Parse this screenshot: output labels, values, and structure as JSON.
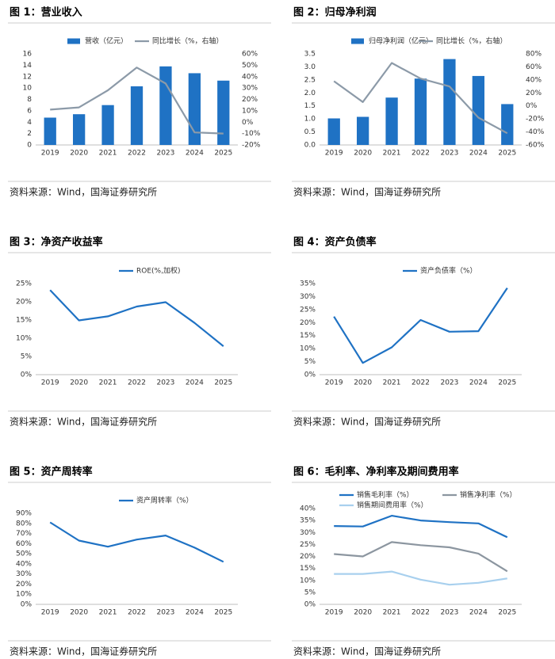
{
  "chart_data": [
    {
      "type": "combo",
      "title": "图 1：营业收入",
      "source": "资料来源：Wind，国海证券研究所",
      "categories": [
        "2019",
        "2020",
        "2021",
        "2022",
        "2023",
        "2024",
        "2025"
      ],
      "series": [
        {
          "name": "营收（亿元）",
          "type": "bar",
          "color": "#1f72c4",
          "values": [
            4.8,
            5.4,
            7.0,
            10.3,
            13.8,
            12.6,
            11.3
          ]
        },
        {
          "name": "同比增长（%，右轴）",
          "type": "line",
          "axis": "y2",
          "color": "#8c9aa8",
          "values": [
            11,
            13,
            28,
            48,
            34,
            -9,
            -10
          ]
        }
      ],
      "ylim": [
        0,
        16
      ],
      "yticks": [
        0,
        2,
        4,
        6,
        8,
        10,
        12,
        14,
        16
      ],
      "y2lim": [
        -20,
        60
      ],
      "y2ticks": [
        {
          "value": -20,
          "label": "-20%"
        },
        {
          "value": -10,
          "label": "-10%"
        },
        {
          "value": 0,
          "label": "0%"
        },
        {
          "value": 10,
          "label": "10%"
        },
        {
          "value": 20,
          "label": "20%"
        },
        {
          "value": 30,
          "label": "30%"
        },
        {
          "value": 40,
          "label": "40%"
        },
        {
          "value": 50,
          "label": "50%"
        },
        {
          "value": 60,
          "label": "60%"
        }
      ]
    },
    {
      "type": "combo",
      "title": "图 2：归母净利润",
      "source": "资料来源：Wind，国海证券研究所",
      "categories": [
        "2019",
        "2020",
        "2021",
        "2022",
        "2023",
        "2024",
        "2025"
      ],
      "series": [
        {
          "name": "归母净利润（亿元）",
          "type": "bar",
          "color": "#1f72c4",
          "values": [
            1.02,
            1.08,
            1.82,
            2.55,
            3.3,
            2.65,
            1.57
          ]
        },
        {
          "name": "同比增长（%，右轴）",
          "type": "line",
          "axis": "y2",
          "color": "#8c9aa8",
          "values": [
            38,
            6,
            66,
            42,
            30,
            -18,
            -42
          ]
        }
      ],
      "ylim": [
        0,
        3.5
      ],
      "yticks": [
        {
          "value": 0,
          "label": "0.0"
        },
        0.5,
        {
          "value": 1,
          "label": "1.0"
        },
        1.5,
        {
          "value": 2,
          "label": "2.0"
        },
        2.5,
        {
          "value": 3,
          "label": "3.0"
        },
        3.5
      ],
      "y2lim": [
        -60,
        80
      ],
      "y2ticks": [
        {
          "value": -60,
          "label": "-60%"
        },
        {
          "value": -40,
          "label": "-40%"
        },
        {
          "value": -20,
          "label": "-20%"
        },
        {
          "value": 0,
          "label": "0%"
        },
        {
          "value": 20,
          "label": "20%"
        },
        {
          "value": 40,
          "label": "40%"
        },
        {
          "value": 60,
          "label": "60%"
        },
        {
          "value": 80,
          "label": "80%"
        }
      ]
    },
    {
      "type": "line",
      "title": "图 3：净资产收益率",
      "source": "资料来源：Wind，国海证券研究所",
      "categories": [
        "2019",
        "2020",
        "2021",
        "2022",
        "2023",
        "2024",
        "2025"
      ],
      "series": [
        {
          "name": "ROE(%,加权)",
          "type": "line",
          "color": "#1f72c4",
          "values": [
            23.2,
            14.9,
            16.0,
            18.7,
            19.9,
            14.2,
            7.8
          ]
        }
      ],
      "ylim": [
        0,
        25
      ],
      "yticks": [
        {
          "value": 0,
          "label": "0%"
        },
        {
          "value": 5,
          "label": "5%"
        },
        {
          "value": 10,
          "label": "10%"
        },
        {
          "value": 15,
          "label": "15%"
        },
        {
          "value": 20,
          "label": "20%"
        },
        {
          "value": 25,
          "label": "25%"
        }
      ]
    },
    {
      "type": "line",
      "title": "图 4：资产负债率",
      "source": "资料来源：Wind，国海证券研究所",
      "categories": [
        "2019",
        "2020",
        "2021",
        "2022",
        "2023",
        "2024",
        "2025"
      ],
      "series": [
        {
          "name": "资产负债率（%）",
          "type": "line",
          "color": "#1f72c4",
          "values": [
            22.3,
            4.5,
            10.5,
            21.0,
            16.5,
            16.7,
            33.3
          ]
        }
      ],
      "ylim": [
        0,
        35
      ],
      "yticks": [
        {
          "value": 0,
          "label": "0%"
        },
        {
          "value": 5,
          "label": "5%"
        },
        {
          "value": 10,
          "label": "10%"
        },
        {
          "value": 15,
          "label": "15%"
        },
        {
          "value": 20,
          "label": "20%"
        },
        {
          "value": 25,
          "label": "25%"
        },
        {
          "value": 30,
          "label": "30%"
        },
        {
          "value": 35,
          "label": "35%"
        }
      ]
    },
    {
      "type": "line",
      "title": "图 5：资产周转率",
      "source": "资料来源：Wind，国海证券研究所",
      "categories": [
        "2019",
        "2020",
        "2021",
        "2022",
        "2023",
        "2024",
        "2025"
      ],
      "series": [
        {
          "name": "资产周转率（%）",
          "type": "line",
          "color": "#1f72c4",
          "values": [
            81,
            63,
            57,
            64,
            68,
            56,
            42
          ]
        }
      ],
      "ylim": [
        0,
        90
      ],
      "yticks": [
        {
          "value": 0,
          "label": "0%"
        },
        {
          "value": 10,
          "label": "10%"
        },
        {
          "value": 20,
          "label": "20%"
        },
        {
          "value": 30,
          "label": "30%"
        },
        {
          "value": 40,
          "label": "40%"
        },
        {
          "value": 50,
          "label": "50%"
        },
        {
          "value": 60,
          "label": "60%"
        },
        {
          "value": 70,
          "label": "70%"
        },
        {
          "value": 80,
          "label": "80%"
        },
        {
          "value": 90,
          "label": "90%"
        }
      ]
    },
    {
      "type": "line",
      "title": "图 6：毛利率、净利率及期间费用率",
      "source": "资料来源：Wind，国海证券研究所",
      "categories": [
        "2019",
        "2020",
        "2021",
        "2022",
        "2023",
        "2024",
        "2025"
      ],
      "series": [
        {
          "name": "销售毛利率（%）",
          "type": "line",
          "color": "#1f72c4",
          "values": [
            32.7,
            32.5,
            37.0,
            35.0,
            34.3,
            33.8,
            28.0
          ]
        },
        {
          "name": "销售净利率（%）",
          "type": "line",
          "color": "#8c96a0",
          "values": [
            21.0,
            20.0,
            26.0,
            24.7,
            23.8,
            21.2,
            13.8
          ]
        },
        {
          "name": "销售期间费用率（%）",
          "type": "line",
          "color": "#a8d0ee",
          "values": [
            12.7,
            12.7,
            13.7,
            10.3,
            8.2,
            9.0,
            10.8
          ]
        }
      ],
      "ylim": [
        0,
        40
      ],
      "yticks": [
        {
          "value": 0,
          "label": "0%"
        },
        {
          "value": 5,
          "label": "5%"
        },
        {
          "value": 10,
          "label": "10%"
        },
        {
          "value": 15,
          "label": "15%"
        },
        {
          "value": 20,
          "label": "20%"
        },
        {
          "value": 25,
          "label": "25%"
        },
        {
          "value": 30,
          "label": "30%"
        },
        {
          "value": 35,
          "label": "35%"
        },
        {
          "value": 40,
          "label": "40%"
        }
      ]
    }
  ]
}
